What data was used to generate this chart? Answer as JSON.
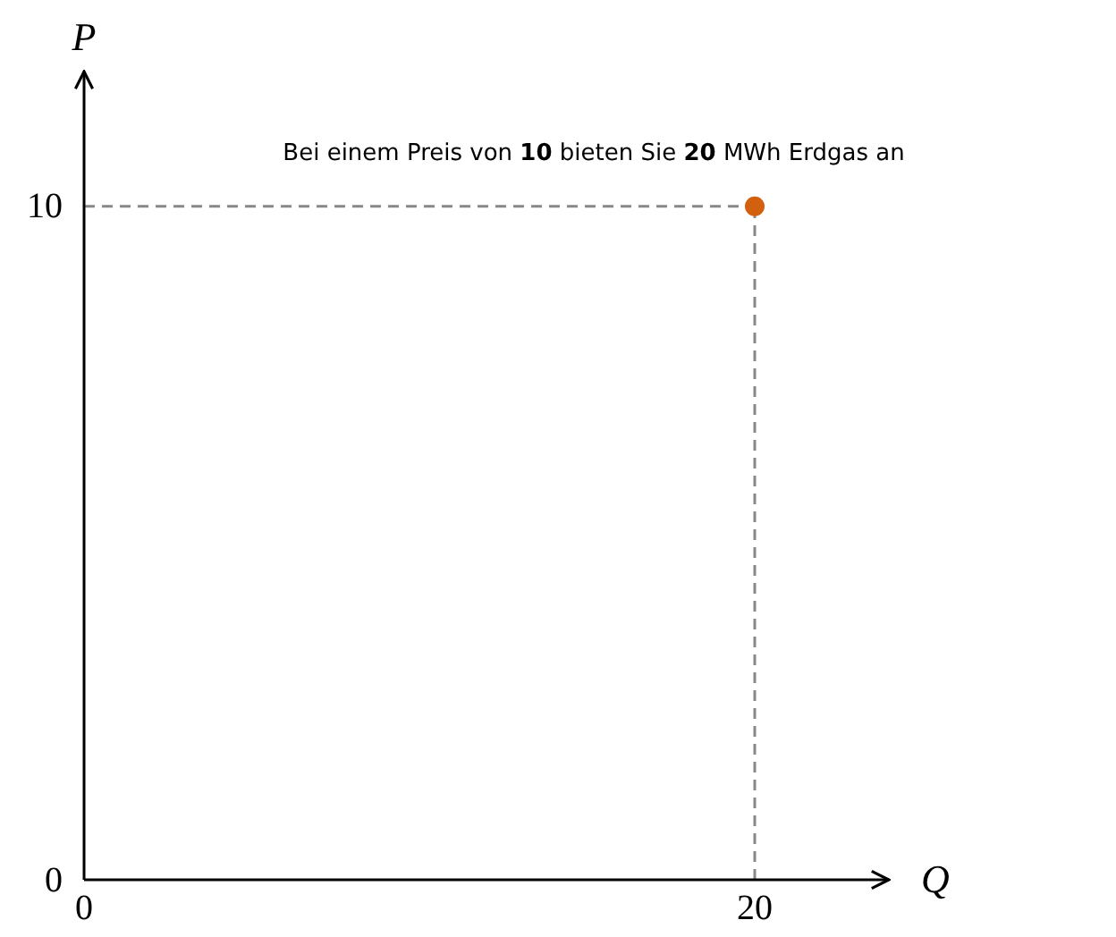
{
  "chart_data": {
    "type": "scatter",
    "xlabel": "Q",
    "ylabel": "P",
    "x": [
      20
    ],
    "values": [
      10
    ],
    "color": "#d2600f",
    "marker": "circle",
    "xlim": [
      0,
      24
    ],
    "ylim": [
      0,
      12
    ],
    "xticks": [
      0,
      20
    ],
    "yticks": [
      0,
      10
    ],
    "grid": false,
    "legend": false,
    "ref_lines": [
      {
        "axis": "x",
        "value": 20,
        "color": "#888888",
        "line_style": "dashed"
      },
      {
        "axis": "y",
        "value": 10,
        "color": "#888888",
        "line_style": "dashed"
      }
    ],
    "annotations": [
      {
        "text": "Bei einem Preis von 10 bieten Sie 20 MWh Erdgas an",
        "x": 20,
        "y": 10
      }
    ]
  }
}
